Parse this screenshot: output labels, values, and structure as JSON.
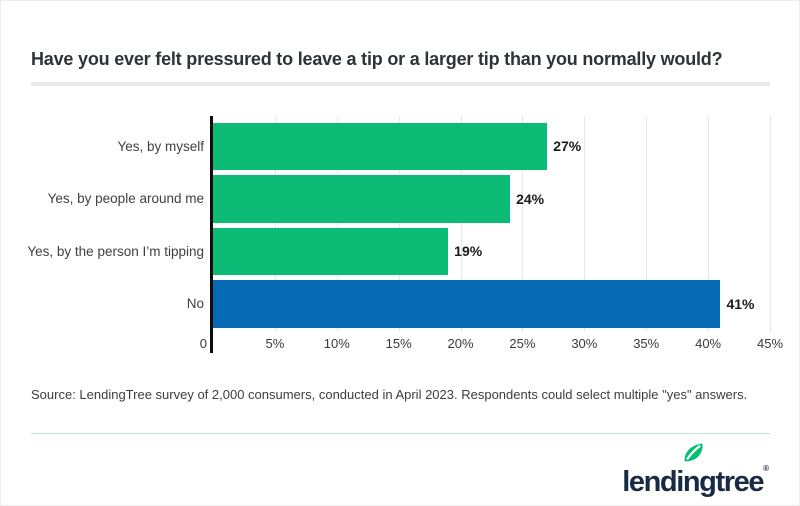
{
  "title": "Have you ever felt pressured to leave a tip or a larger tip than you normally would?",
  "chart_data": {
    "type": "bar",
    "orientation": "horizontal",
    "title": "Have you ever felt pressured to leave a tip or a larger tip than you normally would?",
    "categories": [
      "Yes, by myself",
      "Yes, by people around me",
      "Yes, by the person I’m tipping",
      "No"
    ],
    "values": [
      27,
      24,
      19,
      41
    ],
    "value_labels": [
      "27%",
      "24%",
      "19%",
      "41%"
    ],
    "bar_colors": [
      "#0cbc76",
      "#0cbc76",
      "#0cbc76",
      "#0669b3"
    ],
    "xlim": [
      0,
      45
    ],
    "x_tick_values": [
      0,
      5,
      10,
      15,
      20,
      25,
      30,
      35,
      40,
      45
    ],
    "x_tick_labels": [
      "0",
      "5%",
      "10%",
      "15%",
      "20%",
      "25%",
      "30%",
      "35%",
      "40%",
      "45%"
    ],
    "xlabel": "",
    "ylabel": "",
    "grid": true,
    "legend_position": "none"
  },
  "source_note": "Source: LendingTree survey of 2,000 consumers, conducted in April 2023. Respondents could select multiple \"yes\" answers.",
  "logo": {
    "text": "lendingtree",
    "registered_mark": "®",
    "text_color": "#182a44",
    "leaf_color": "#00bf6e"
  },
  "colors": {
    "bar_green": "#0cbc76",
    "bar_blue": "#0669b3",
    "axis": "#0d0d0d",
    "gridline": "#e8e8e8",
    "divider": "#e9e9e9",
    "footer_divider": "#c9ded8"
  }
}
